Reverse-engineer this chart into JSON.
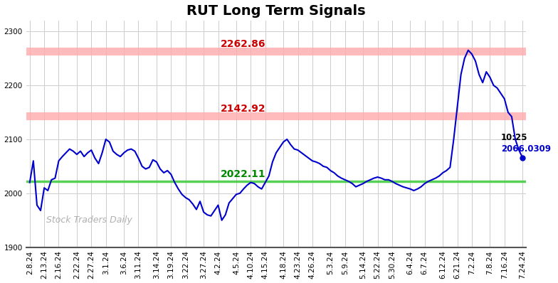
{
  "title": "RUT Long Term Signals",
  "watermark": "Stock Traders Daily",
  "hline_red1": 2262.86,
  "hline_red2": 2142.92,
  "hline_green": 2022.11,
  "hline_red1_label": "2262.86",
  "hline_red2_label": "2142.92",
  "hline_green_label": "2022.11",
  "last_label_time": "10:25",
  "last_label_price": "2066.0309",
  "last_price": 2066.0309,
  "ylim": [
    1900,
    2320
  ],
  "yticks": [
    1900,
    2000,
    2100,
    2200,
    2300
  ],
  "x_labels": [
    "2.8.24",
    "2.13.24",
    "2.16.24",
    "2.22.24",
    "2.27.24",
    "3.1.24",
    "3.6.24",
    "3.11.24",
    "3.14.24",
    "3.19.24",
    "3.22.24",
    "3.27.24",
    "4.2.24",
    "4.5.24",
    "4.10.24",
    "4.15.24",
    "4.18.24",
    "4.23.24",
    "4.26.24",
    "5.3.24",
    "5.9.24",
    "5.14.24",
    "5.22.24",
    "5.30.24",
    "6.4.24",
    "6.7.24",
    "6.12.24",
    "6.21.24",
    "7.2.24",
    "7.8.24",
    "7.16.24",
    "7.24.24"
  ],
  "prices": [
    2020,
    2060,
    1978,
    1968,
    2010,
    2005,
    2025,
    2028,
    2060,
    2068,
    2075,
    2082,
    2078,
    2072,
    2078,
    2068,
    2075,
    2080,
    2065,
    2055,
    2075,
    2100,
    2095,
    2078,
    2072,
    2068,
    2075,
    2080,
    2082,
    2078,
    2065,
    2050,
    2045,
    2048,
    2062,
    2058,
    2045,
    2038,
    2042,
    2035,
    2020,
    2008,
    1998,
    1992,
    1988,
    1980,
    1970,
    1985,
    1965,
    1960,
    1958,
    1968,
    1978,
    1950,
    1960,
    1982,
    1990,
    1998,
    2000,
    2008,
    2015,
    2020,
    2018,
    2012,
    2008,
    2020,
    2032,
    2058,
    2075,
    2085,
    2095,
    2100,
    2090,
    2082,
    2080,
    2075,
    2070,
    2065,
    2060,
    2058,
    2055,
    2050,
    2048,
    2042,
    2038,
    2032,
    2028,
    2025,
    2022,
    2018,
    2012,
    2015,
    2018,
    2022,
    2025,
    2028,
    2030,
    2028,
    2025,
    2025,
    2022,
    2018,
    2015,
    2012,
    2010,
    2008,
    2005,
    2008,
    2012,
    2018,
    2022,
    2025,
    2028,
    2032,
    2038,
    2042,
    2048,
    2100,
    2160,
    2220,
    2250,
    2265,
    2258,
    2245,
    2220,
    2205,
    2225,
    2215,
    2200,
    2195,
    2185,
    2175,
    2150,
    2142,
    2100,
    2080,
    2066
  ],
  "line_color": "#0000cc",
  "red_line_color": "#ffaaaa",
  "red_text_color": "#cc0000",
  "green_line_color": "#44cc44",
  "green_text_color": "#008800",
  "bg_color": "#ffffff",
  "grid_color": "#cccccc",
  "title_fontsize": 14,
  "label_fontsize": 7.5
}
